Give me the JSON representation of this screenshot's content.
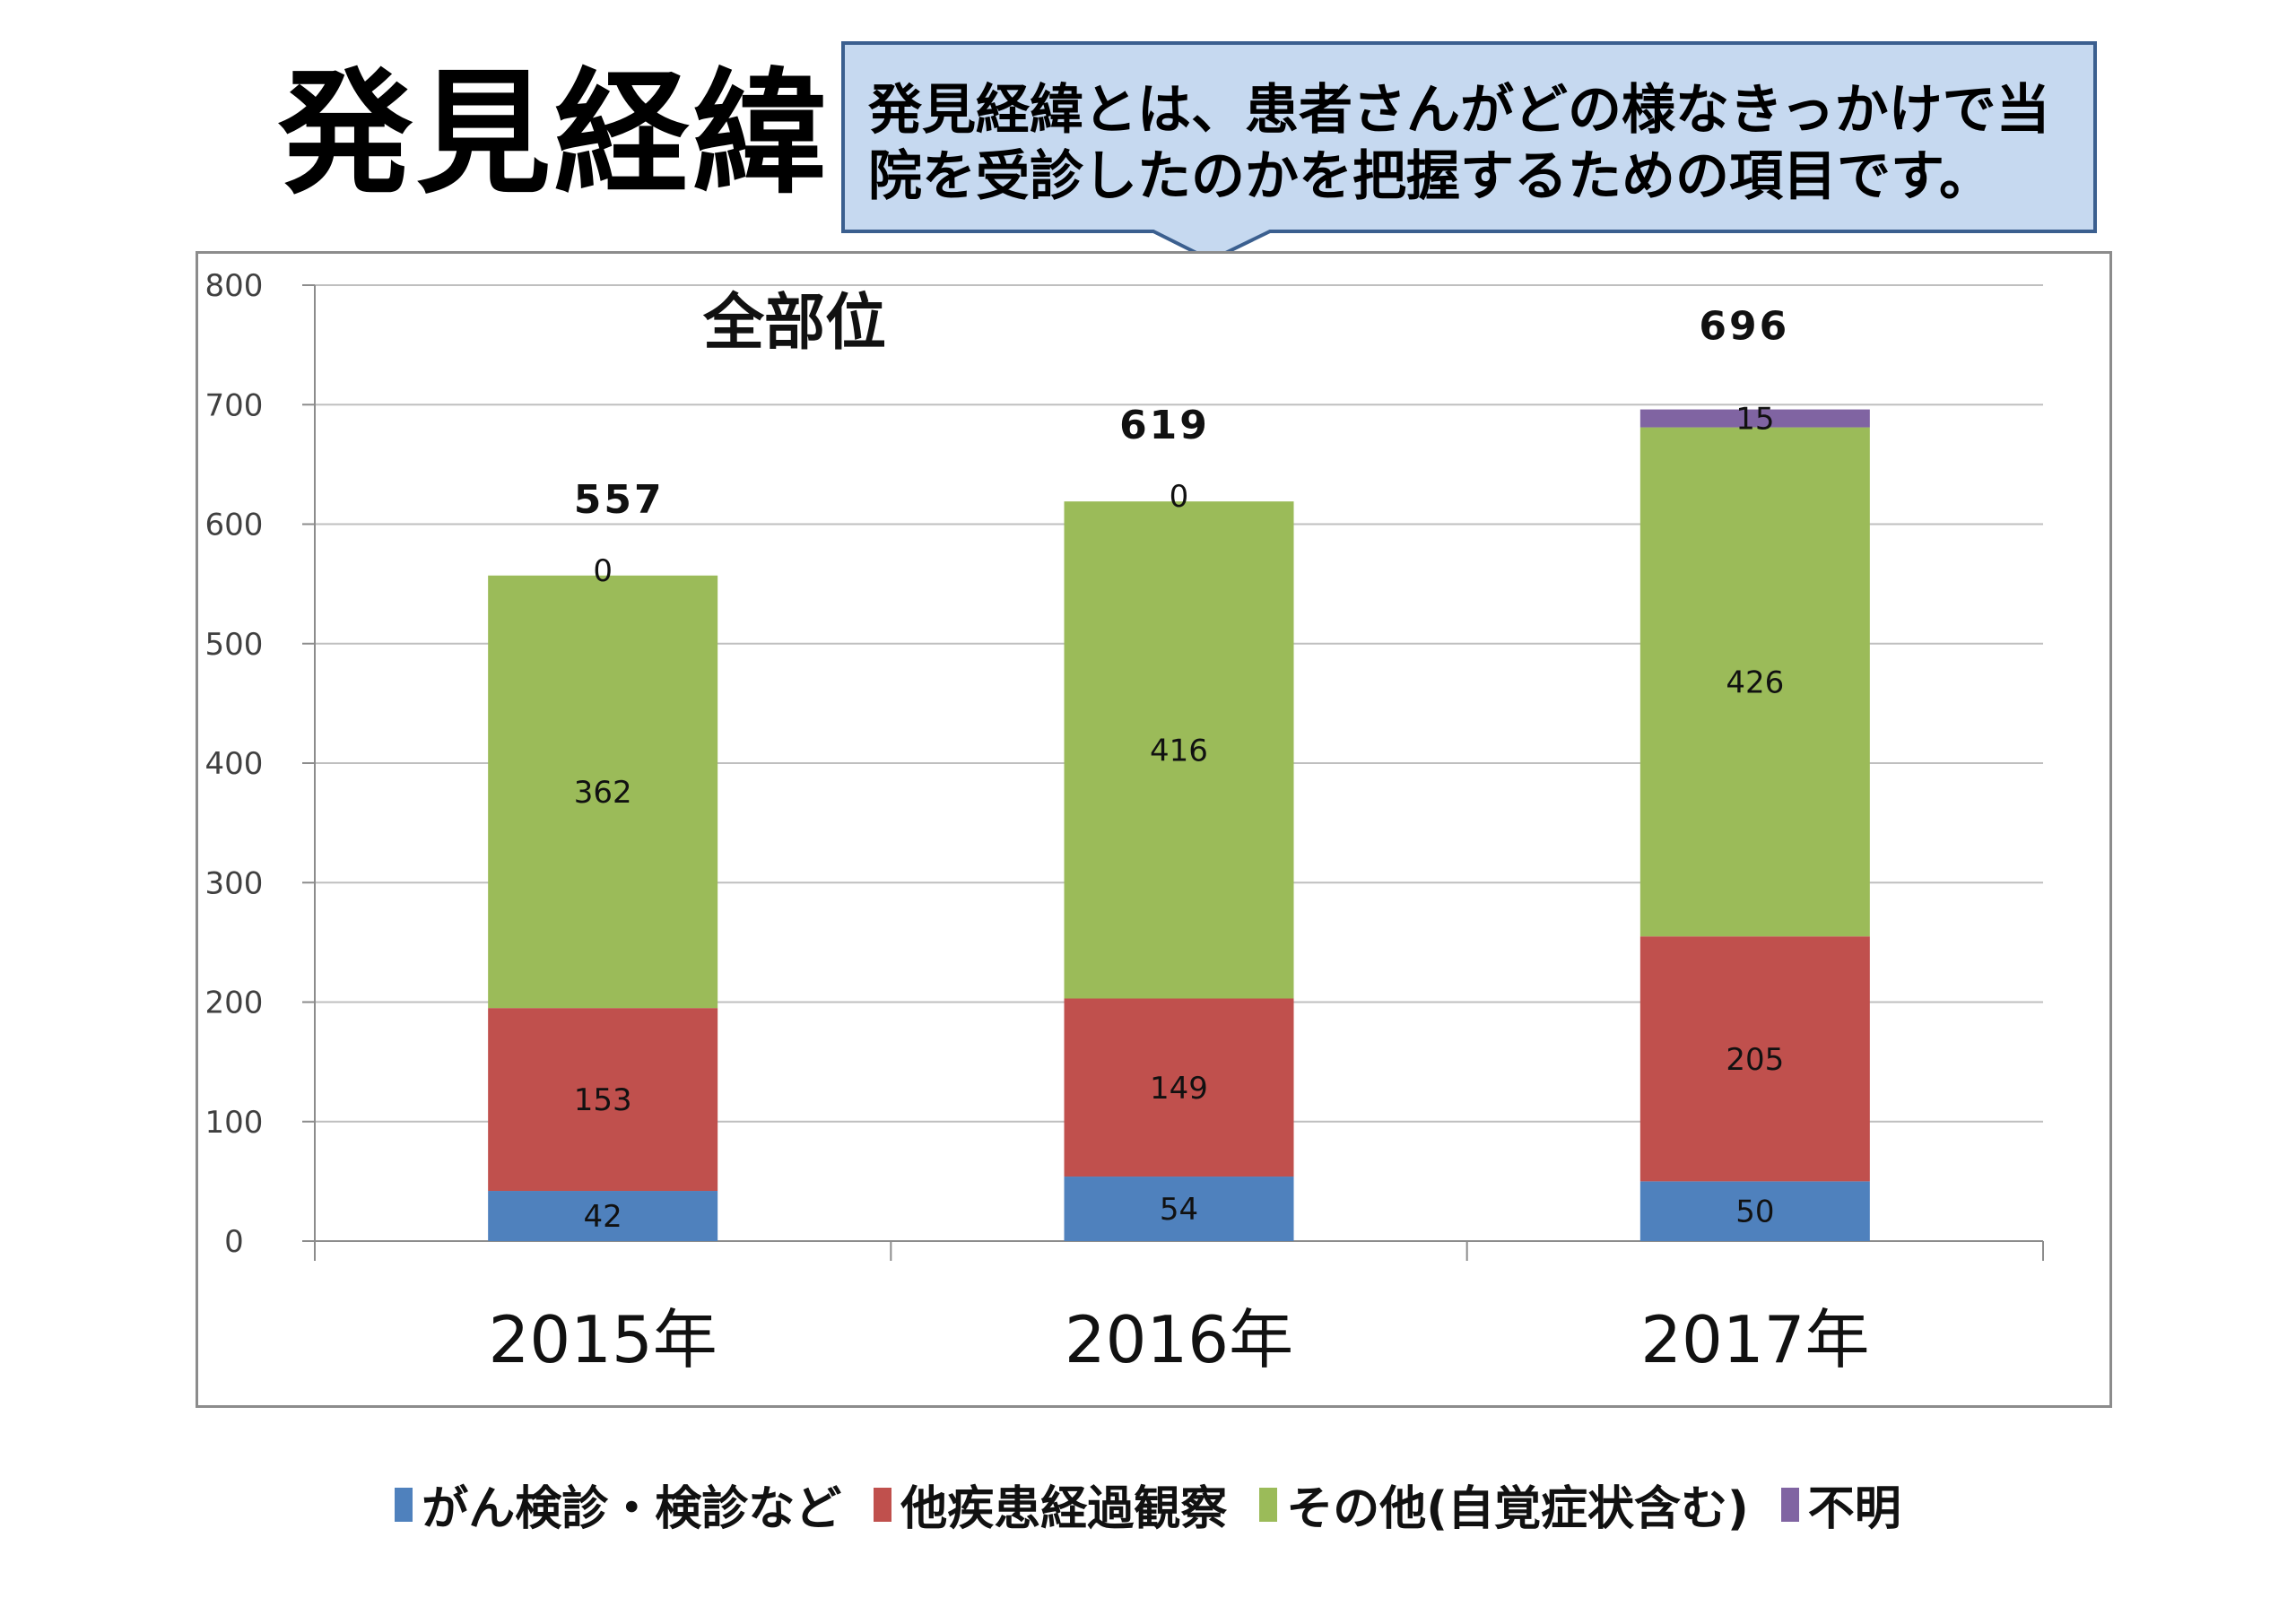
{
  "page": {
    "title": "発見経緯",
    "callout": "発見経緯とは、患者さんがどの様なきっかけで当院を受診したのかを把握するための項目です。",
    "callout_fill": "#c6d9f0",
    "callout_border": "#3b5f8f"
  },
  "chart_data": {
    "type": "bar",
    "stacked": true,
    "title": "全部位",
    "categories": [
      "2015年",
      "2016年",
      "2017年"
    ],
    "series": [
      {
        "name": "がん検診・検診など",
        "values": [
          42,
          54,
          50
        ],
        "color": "#4f81bd"
      },
      {
        "name": "他疾患経過観察",
        "values": [
          153,
          149,
          205
        ],
        "color": "#c0504d"
      },
      {
        "name": "その他(自覚症状含む)",
        "values": [
          362,
          416,
          426
        ],
        "color": "#9bbb59"
      },
      {
        "name": "不明",
        "values": [
          0,
          0,
          15
        ],
        "color": "#8064a2"
      }
    ],
    "totals": [
      557,
      619,
      696
    ],
    "ylim": [
      0,
      800
    ],
    "yticks": [
      0,
      100,
      200,
      300,
      400,
      500,
      600,
      700,
      800
    ],
    "grid": true,
    "legend": "bottom"
  }
}
